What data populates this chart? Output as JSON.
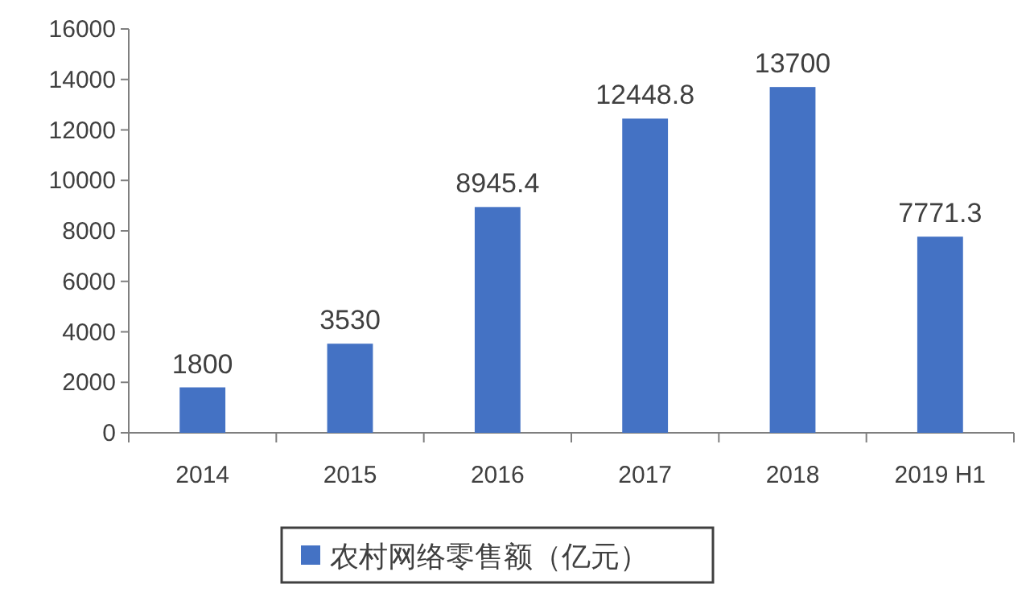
{
  "chart_data": {
    "type": "bar",
    "categories": [
      "2014",
      "2015",
      "2016",
      "2017",
      "2018",
      "2019 H1"
    ],
    "series": [
      {
        "name": "农村网络零售额（亿元）",
        "color": "#4472c4",
        "values": [
          1800,
          3530,
          8945.4,
          12448.8,
          13700,
          7771.3
        ]
      }
    ],
    "ylim": [
      0,
      16000
    ],
    "yticks": [
      0,
      2000,
      4000,
      6000,
      8000,
      10000,
      12000,
      14000,
      16000
    ],
    "data_labels": true,
    "legend": "bottom",
    "grid": false
  }
}
